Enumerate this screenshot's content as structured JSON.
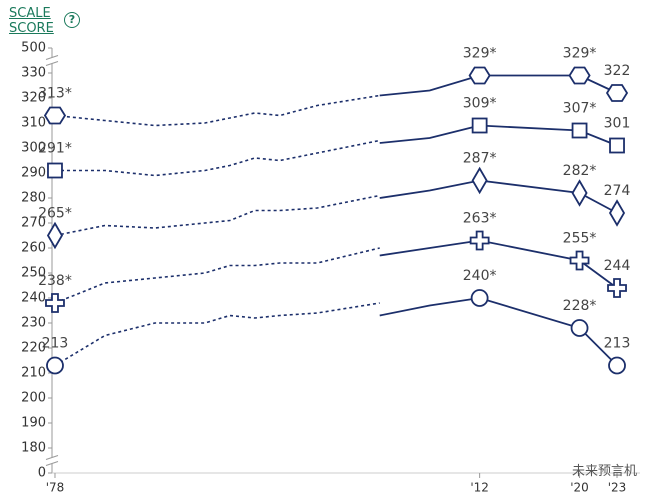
{
  "chart_data": {
    "type": "line",
    "ylabel": "SCALE SCORE",
    "help_icon": "?",
    "watermark": "未来预言机",
    "x": [
      1978,
      1982,
      1986,
      1990,
      1992,
      1994,
      1996,
      1999,
      2004,
      null,
      2004,
      2008,
      2012,
      2020,
      2023
    ],
    "xlim": [
      1976,
      2025
    ],
    "xticks": [
      {
        "value": 1978,
        "label": "'78"
      },
      {
        "value": 2012,
        "label": "'12"
      },
      {
        "value": 2020,
        "label": "'20"
      },
      {
        "value": 2023,
        "label": "'23"
      }
    ],
    "ylim": [
      0,
      500
    ],
    "yticks": [
      0,
      180,
      190,
      200,
      210,
      220,
      230,
      240,
      250,
      260,
      270,
      280,
      290,
      300,
      310,
      320,
      330,
      500
    ],
    "axis_break": true,
    "piece_styles": [
      "dashed",
      "solid"
    ],
    "series": [
      {
        "marker": "hexagon",
        "color": "#1c2f6b",
        "values": [
          313,
          311,
          309,
          310,
          312,
          314,
          313,
          317,
          321,
          null,
          321,
          323,
          329,
          329,
          322
        ],
        "value_labels": [
          "313*",
          null,
          null,
          null,
          null,
          null,
          null,
          null,
          null,
          null,
          null,
          null,
          "329*",
          "329*",
          "322"
        ]
      },
      {
        "marker": "square",
        "color": "#1c2f6b",
        "values": [
          291,
          291,
          289,
          291,
          293,
          296,
          295,
          298,
          303,
          null,
          302,
          304,
          309,
          307,
          301
        ],
        "value_labels": [
          "291*",
          null,
          null,
          null,
          null,
          null,
          null,
          null,
          null,
          null,
          null,
          null,
          "309*",
          "307*",
          "301"
        ]
      },
      {
        "marker": "diamond",
        "color": "#1c2f6b",
        "values": [
          265,
          269,
          268,
          270,
          271,
          275,
          275,
          276,
          281,
          null,
          280,
          283,
          287,
          282,
          274
        ],
        "value_labels": [
          "265*",
          null,
          null,
          null,
          null,
          null,
          null,
          null,
          null,
          null,
          null,
          null,
          "287*",
          "282*",
          "274"
        ]
      },
      {
        "marker": "cross",
        "color": "#1c2f6b",
        "values": [
          238,
          246,
          248,
          250,
          253,
          253,
          254,
          254,
          260,
          null,
          257,
          260,
          263,
          255,
          244
        ],
        "value_labels": [
          "238*",
          null,
          null,
          null,
          null,
          null,
          null,
          null,
          null,
          null,
          null,
          null,
          "263*",
          "255*",
          "244"
        ]
      },
      {
        "marker": "circle",
        "color": "#1c2f6b",
        "values": [
          213,
          225,
          230,
          230,
          233,
          232,
          233,
          234,
          238,
          null,
          233,
          237,
          240,
          228,
          213
        ],
        "value_labels": [
          "213",
          null,
          null,
          null,
          null,
          null,
          null,
          null,
          null,
          null,
          null,
          null,
          "240*",
          "228*",
          "213"
        ]
      }
    ]
  }
}
